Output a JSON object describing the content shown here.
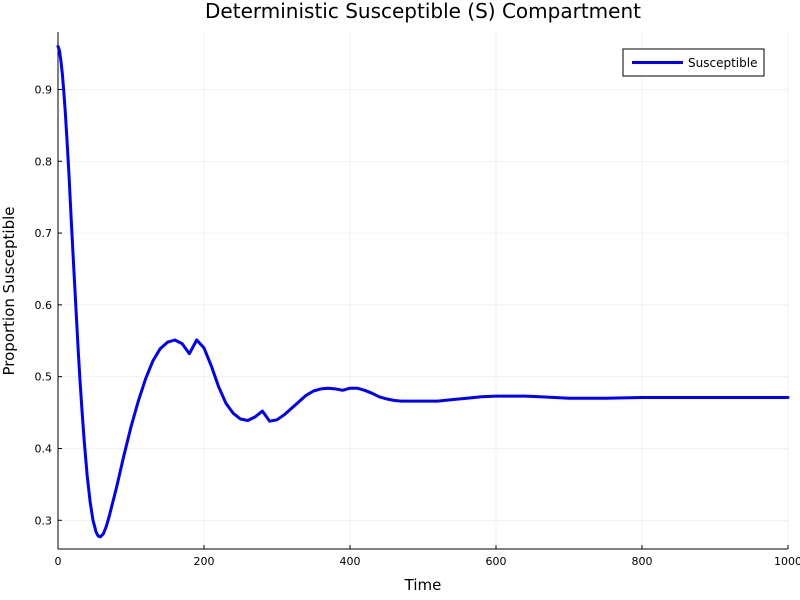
{
  "chart_data": {
    "type": "line",
    "title": "Deterministic Susceptible (S) Compartment",
    "xlabel": "Time",
    "ylabel": "Proportion Susceptible",
    "xlim": [
      0,
      1000
    ],
    "ylim": [
      0.26,
      0.98
    ],
    "xticks": [
      0,
      200,
      400,
      600,
      800,
      1000
    ],
    "xtick_labels": [
      "0",
      "200",
      "400",
      "600",
      "800",
      "1000"
    ],
    "yticks": [
      0.3,
      0.4,
      0.5,
      0.6,
      0.7,
      0.8,
      0.9
    ],
    "ytick_labels": [
      "0.3",
      "0.4",
      "0.5",
      "0.6",
      "0.7",
      "0.8",
      "0.9"
    ],
    "grid": true,
    "legend_position": "top-right",
    "series": [
      {
        "name": "Susceptible",
        "color": "#0000ff",
        "x": [
          0,
          2,
          4,
          6,
          8,
          10,
          12,
          15,
          18,
          20,
          22,
          25,
          28,
          30,
          33,
          36,
          40,
          44,
          48,
          52,
          55,
          58,
          62,
          66,
          70,
          80,
          90,
          100,
          110,
          120,
          130,
          140,
          150,
          160,
          170,
          180,
          190,
          200,
          210,
          220,
          230,
          240,
          250,
          260,
          270,
          280,
          290,
          300,
          310,
          320,
          330,
          340,
          350,
          360,
          370,
          380,
          390,
          400,
          410,
          420,
          430,
          440,
          450,
          460,
          470,
          480,
          490,
          500,
          520,
          540,
          560,
          580,
          600,
          620,
          640,
          660,
          680,
          700,
          750,
          800,
          850,
          900,
          950,
          1000
        ],
        "y": [
          0.96,
          0.954,
          0.94,
          0.921,
          0.897,
          0.868,
          0.834,
          0.781,
          0.722,
          0.682,
          0.643,
          0.586,
          0.532,
          0.497,
          0.451,
          0.409,
          0.362,
          0.326,
          0.3,
          0.284,
          0.278,
          0.277,
          0.281,
          0.291,
          0.305,
          0.345,
          0.389,
          0.43,
          0.466,
          0.497,
          0.522,
          0.539,
          0.548,
          0.551,
          0.546,
          0.532,
          0.551,
          0.54,
          0.515,
          0.486,
          0.463,
          0.449,
          0.441,
          0.439,
          0.444,
          0.452,
          0.438,
          0.44,
          0.447,
          0.456,
          0.465,
          0.474,
          0.48,
          0.483,
          0.484,
          0.483,
          0.481,
          0.484,
          0.484,
          0.481,
          0.477,
          0.472,
          0.469,
          0.467,
          0.466,
          0.466,
          0.466,
          0.466,
          0.466,
          0.468,
          0.47,
          0.472,
          0.473,
          0.473,
          0.473,
          0.472,
          0.471,
          0.47,
          0.47,
          0.471,
          0.471,
          0.471,
          0.471,
          0.471
        ]
      }
    ]
  }
}
